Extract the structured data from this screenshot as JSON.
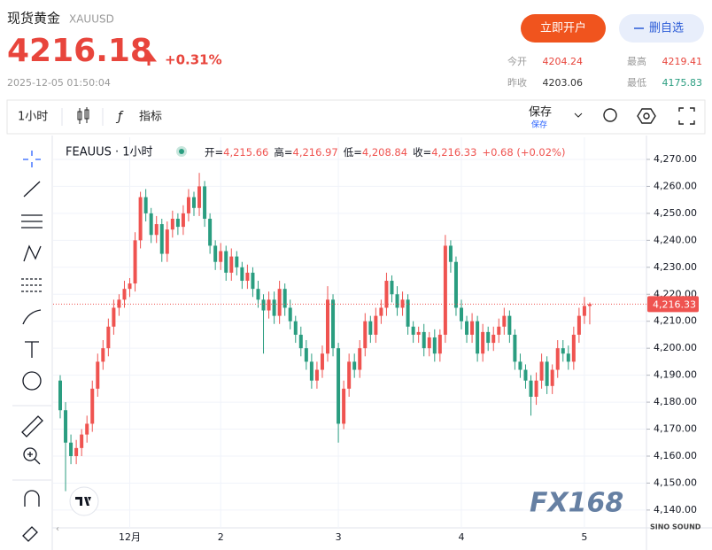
{
  "header": {
    "title": "现货黄金",
    "symbol": "XAUUSD",
    "price": "4216.18",
    "change": "+0.31%",
    "timestamp": "2025-12-05 01:50:04",
    "open_account": "立即开户",
    "remove_watchlist": "删自选"
  },
  "stats": [
    {
      "label": "今开",
      "value": "4204.24"
    },
    {
      "label": "最高",
      "value": "4219.41"
    },
    {
      "label": "昨收",
      "value": "4203.06"
    },
    {
      "label": "最低",
      "value": "4175.83"
    }
  ],
  "toolbar": {
    "interval": "1小时",
    "indicators": "指标",
    "save": "保存",
    "save_sub": "保存"
  },
  "legend": {
    "symbol": "FEAUUS · 1小时",
    "items": [
      {
        "label": "开=",
        "value": "4,215.66"
      },
      {
        "label": "高=",
        "value": "4,216.97"
      },
      {
        "label": "低=",
        "value": "4,208.84"
      },
      {
        "label": "收=",
        "value": "4,216.33"
      }
    ],
    "change": "+0.68 (+0.02%)"
  },
  "watermark": {
    "brand": "FX168",
    "sub": "SINO SOUND"
  },
  "chart_data": {
    "type": "candlestick",
    "up_color": "#ef5350",
    "down_color": "#2a9d80",
    "grid": true,
    "categories": [
      null,
      null,
      null,
      null,
      null,
      null,
      null,
      null,
      null,
      null,
      null,
      null,
      null,
      "12月",
      null,
      null,
      null,
      null,
      null,
      null,
      null,
      null,
      null,
      null,
      null,
      null,
      null,
      null,
      null,
      null,
      "2",
      null,
      null,
      null,
      null,
      null,
      null,
      null,
      null,
      null,
      null,
      null,
      null,
      null,
      null,
      null,
      null,
      null,
      null,
      null,
      null,
      null,
      "3",
      null,
      null,
      null,
      null,
      null,
      null,
      null,
      null,
      null,
      null,
      null,
      null,
      null,
      null,
      null,
      null,
      null,
      null,
      null,
      null,
      null,
      null,
      "4",
      null,
      null,
      null,
      null,
      null,
      null,
      null,
      null,
      null,
      null,
      null,
      null,
      null,
      null,
      null,
      null,
      null,
      null,
      null,
      null,
      null,
      null,
      "5",
      null
    ],
    "open": [
      4188,
      4177,
      4165,
      4160,
      4163,
      4168,
      4172,
      4185,
      4195,
      4200,
      4208,
      4215,
      4218,
      4222,
      4224,
      4240,
      4256,
      4250,
      4242,
      4246,
      4235,
      4244,
      4248,
      4245,
      4250,
      4256,
      4252,
      4260,
      4248,
      4238,
      4232,
      4236,
      4228,
      4234,
      4230,
      4225,
      4228,
      4222,
      4218,
      4214,
      4218,
      4212,
      4222,
      4215,
      4210,
      4205,
      4200,
      4195,
      4188,
      4192,
      4198,
      4218,
      4200,
      4172,
      4185,
      4195,
      4192,
      4200,
      4210,
      4205,
      4212,
      4215,
      4225,
      4220,
      4215,
      4218,
      4208,
      4205,
      4206,
      4200,
      4204,
      4198,
      4205,
      4238,
      4232,
      4215,
      4210,
      4205,
      4210,
      4198,
      4206,
      4202,
      4205,
      4208,
      4212,
      4205,
      4195,
      4192,
      4188,
      4182,
      4188,
      4195,
      4186,
      4192,
      4200,
      4198,
      4195,
      4205,
      4212,
      4215.66
    ],
    "high": [
      4190,
      4180,
      4168,
      4166,
      4170,
      4175,
      4188,
      4198,
      4203,
      4211,
      4218,
      4220,
      4225,
      4226,
      4243,
      4258,
      4259,
      4252,
      4249,
      4248,
      4247,
      4251,
      4250,
      4253,
      4259,
      4258,
      4265,
      4262,
      4250,
      4240,
      4239,
      4238,
      4237,
      4236,
      4232,
      4231,
      4230,
      4225,
      4220,
      4221,
      4221,
      4225,
      4224,
      4218,
      4212,
      4208,
      4203,
      4198,
      4195,
      4201,
      4223,
      4220,
      4202,
      4188,
      4198,
      4198,
      4203,
      4213,
      4212,
      4215,
      4218,
      4228,
      4227,
      4223,
      4221,
      4220,
      4210,
      4208,
      4209,
      4206,
      4207,
      4207,
      4242,
      4240,
      4234,
      4218,
      4212,
      4213,
      4212,
      4209,
      4208,
      4208,
      4211,
      4215,
      4214,
      4207,
      4198,
      4194,
      4190,
      4191,
      4198,
      4197,
      4194,
      4203,
      4203,
      4201,
      4208,
      4215,
      4219,
      4216.97
    ],
    "low": [
      4174,
      4147,
      4157,
      4157,
      4160,
      4165,
      4169,
      4182,
      4192,
      4197,
      4205,
      4212,
      4215,
      4219,
      4221,
      4237,
      4247,
      4239,
      4239,
      4232,
      4232,
      4241,
      4242,
      4242,
      4247,
      4249,
      4249,
      4245,
      4235,
      4229,
      4229,
      4225,
      4225,
      4227,
      4222,
      4222,
      4219,
      4215,
      4198,
      4211,
      4209,
      4209,
      4212,
      4207,
      4202,
      4197,
      4192,
      4185,
      4185,
      4189,
      4195,
      4197,
      4165,
      4170,
      4182,
      4189,
      4189,
      4197,
      4202,
      4202,
      4209,
      4212,
      4217,
      4212,
      4212,
      4205,
      4202,
      4202,
      4197,
      4197,
      4195,
      4195,
      4202,
      4228,
      4212,
      4207,
      4202,
      4202,
      4195,
      4195,
      4199,
      4199,
      4202,
      4205,
      4202,
      4192,
      4189,
      4185,
      4175,
      4179,
      4185,
      4183,
      4183,
      4189,
      4195,
      4192,
      4192,
      4202,
      4209,
      4208.84
    ],
    "close": [
      4177,
      4165,
      4160,
      4163,
      4168,
      4172,
      4185,
      4195,
      4200,
      4208,
      4215,
      4218,
      4222,
      4224,
      4240,
      4256,
      4250,
      4242,
      4246,
      4235,
      4244,
      4248,
      4245,
      4250,
      4256,
      4252,
      4260,
      4248,
      4238,
      4232,
      4236,
      4228,
      4234,
      4230,
      4225,
      4228,
      4222,
      4218,
      4214,
      4218,
      4212,
      4222,
      4215,
      4210,
      4205,
      4200,
      4195,
      4188,
      4192,
      4198,
      4218,
      4200,
      4172,
      4185,
      4195,
      4192,
      4200,
      4210,
      4205,
      4212,
      4215,
      4225,
      4220,
      4215,
      4218,
      4208,
      4205,
      4206,
      4200,
      4204,
      4198,
      4205,
      4238,
      4232,
      4215,
      4210,
      4205,
      4210,
      4198,
      4206,
      4202,
      4205,
      4208,
      4212,
      4205,
      4195,
      4192,
      4188,
      4182,
      4188,
      4195,
      4186,
      4192,
      4200,
      4198,
      4195,
      4205,
      4212,
      4215.66,
      4216.33
    ],
    "ylim": [
      4133.4,
      4278.2
    ],
    "yticks": [
      {
        "value": 4140,
        "label": "4,140.00"
      },
      {
        "value": 4150,
        "label": "4,150.00"
      },
      {
        "value": 4160,
        "label": "4,160.00"
      },
      {
        "value": 4170,
        "label": "4,170.00"
      },
      {
        "value": 4180,
        "label": "4,180.00"
      },
      {
        "value": 4190,
        "label": "4,190.00"
      },
      {
        "value": 4200,
        "label": "4,200.00"
      },
      {
        "value": 4210,
        "label": "4,210.00"
      },
      {
        "value": 4220,
        "label": "4,220.00"
      },
      {
        "value": 4230,
        "label": "4,230.00"
      },
      {
        "value": 4240,
        "label": "4,240.00"
      },
      {
        "value": 4250,
        "label": "4,250.00"
      },
      {
        "value": 4260,
        "label": "4,260.00"
      },
      {
        "value": 4270,
        "label": "4,270.00"
      }
    ],
    "current_price": {
      "value": 4216.33,
      "label": "4,216.33"
    }
  }
}
